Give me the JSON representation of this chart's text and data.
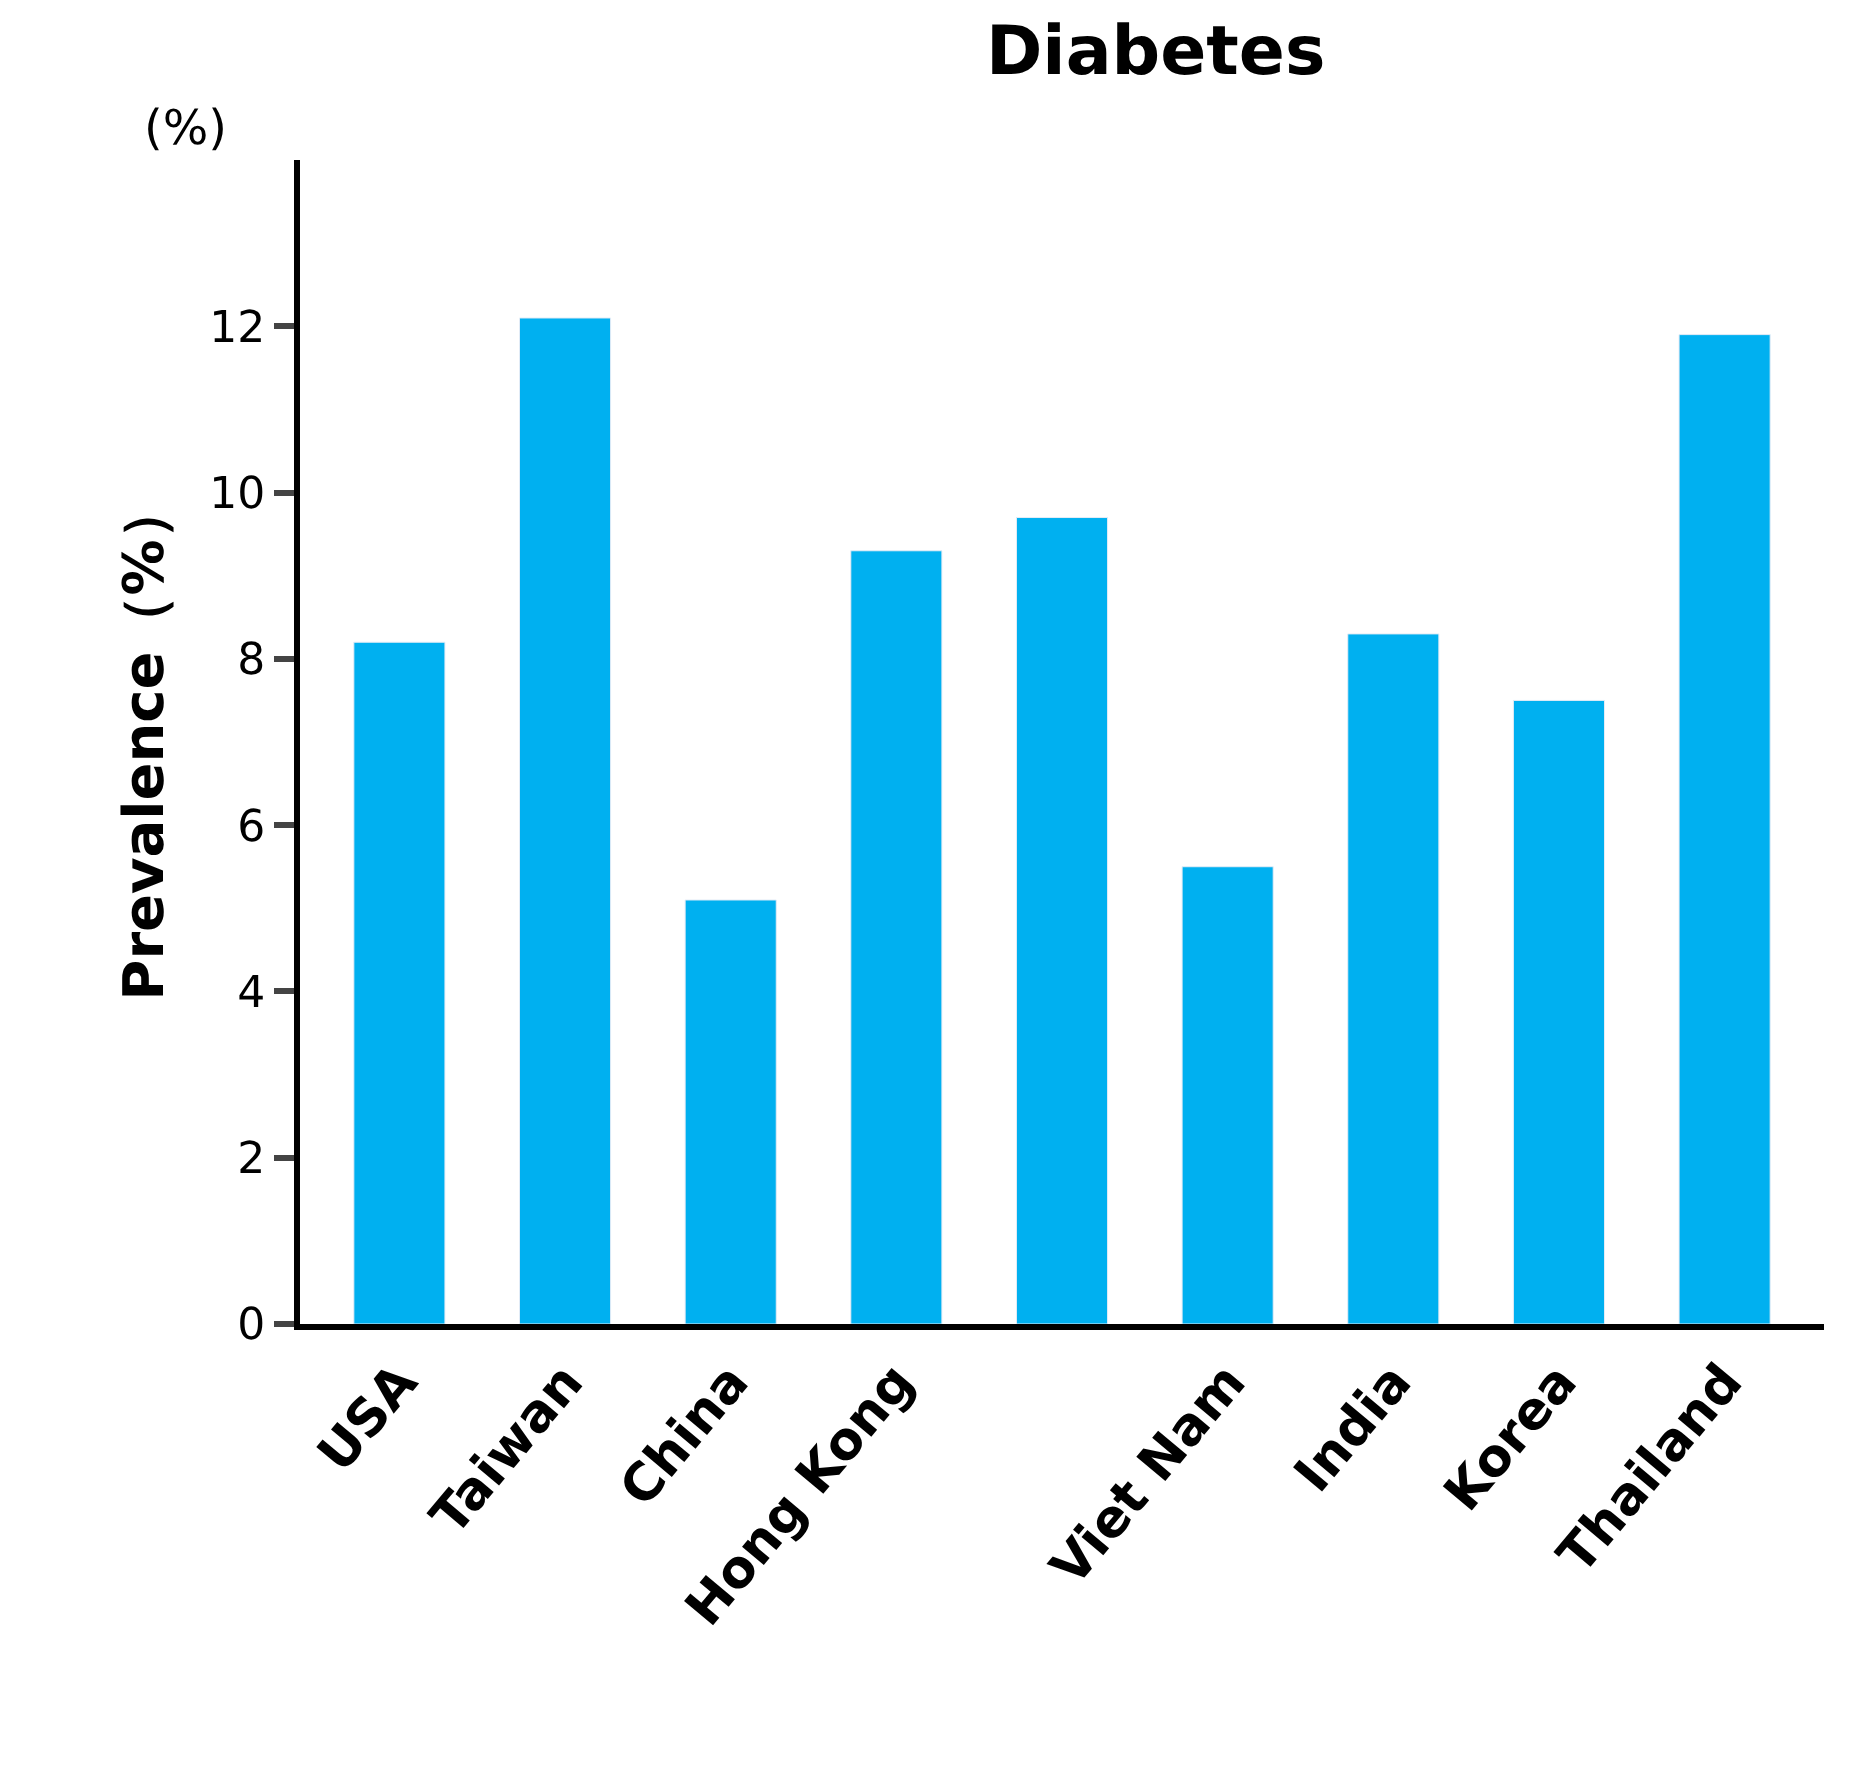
{
  "chart_data": {
    "type": "bar",
    "title": "Diabetes",
    "ylabel": "Prevalence（%）",
    "annotations": [
      "(%)"
    ],
    "categories": [
      "USA",
      "Taiwan",
      "China",
      "Hong Kong",
      null,
      "Viet Nam",
      "India",
      "Korea",
      "Thailand"
    ],
    "values": [
      8.2,
      12.1,
      5.1,
      9.3,
      9.7,
      5.5,
      8.3,
      7.5,
      11.9
    ],
    "color": "#00b0f0",
    "ylim": [
      0,
      14
    ],
    "yticks": [
      0,
      2,
      4,
      6,
      8,
      10,
      12
    ]
  }
}
